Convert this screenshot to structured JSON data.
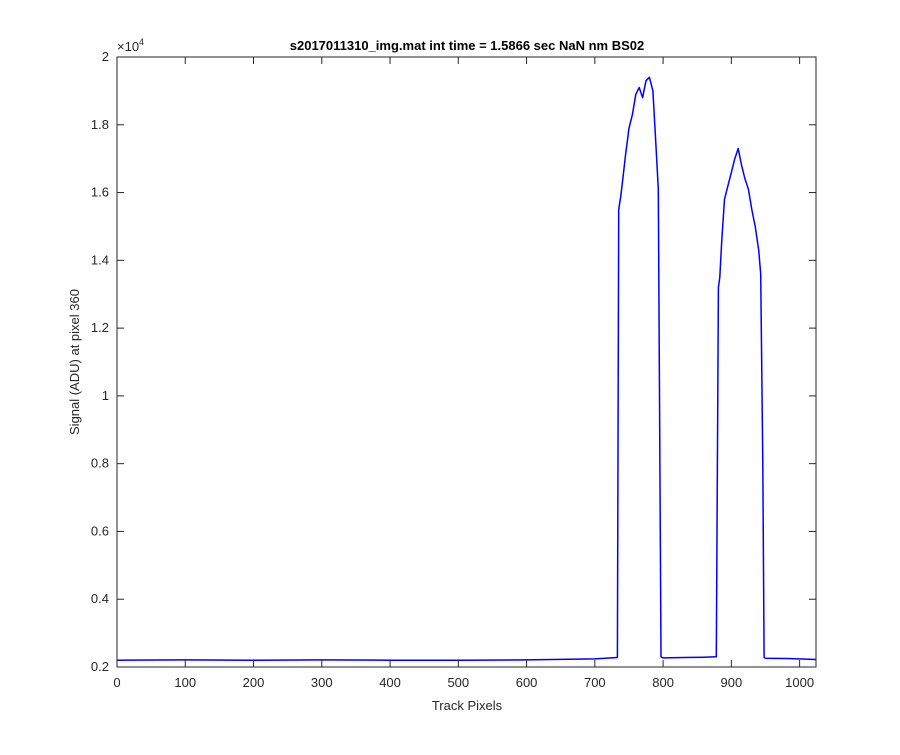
{
  "chart_data": {
    "type": "line",
    "title": "s2017011310_img.mat int time = 1.5866 sec  NaN nm BS02",
    "xlabel": "Track Pixels",
    "ylabel": "Signal (ADU) at pixel 360",
    "y_exponent_label": "×10",
    "y_exponent_power": "4",
    "xlim": [
      0,
      1024
    ],
    "ylim": [
      2000,
      20000
    ],
    "x_ticks": [
      0,
      100,
      200,
      300,
      400,
      500,
      600,
      700,
      800,
      900,
      1000
    ],
    "x_tick_labels": [
      "0",
      "100",
      "200",
      "300",
      "400",
      "500",
      "600",
      "700",
      "800",
      "900",
      "1000"
    ],
    "y_ticks": [
      2000,
      4000,
      6000,
      8000,
      10000,
      12000,
      14000,
      16000,
      18000,
      20000
    ],
    "y_tick_labels": [
      "0.2",
      "0.4",
      "0.6",
      "0.8",
      "1",
      "1.2",
      "1.4",
      "1.6",
      "1.8",
      "2"
    ],
    "grid": false,
    "line_color": "#0000ff",
    "series": [
      {
        "x": [
          0,
          100,
          200,
          300,
          400,
          500,
          600,
          700,
          733,
          735,
          738,
          741,
          745,
          750,
          755,
          760,
          765,
          770,
          775,
          780,
          785,
          790,
          793,
          795,
          797,
          800,
          830,
          860,
          878,
          881,
          883,
          886,
          890,
          895,
          900,
          905,
          910,
          915,
          920,
          925,
          930,
          935,
          940,
          943,
          946,
          948,
          950,
          980,
          1000,
          1024
        ],
        "y": [
          2200,
          2210,
          2200,
          2210,
          2200,
          2200,
          2210,
          2240,
          2280,
          15500,
          15900,
          16400,
          17100,
          17900,
          18300,
          18900,
          19100,
          18800,
          19300,
          19400,
          19000,
          17200,
          16100,
          9000,
          2300,
          2270,
          2280,
          2290,
          2300,
          13200,
          13500,
          14600,
          15800,
          16200,
          16600,
          17000,
          17300,
          16800,
          16400,
          16100,
          15500,
          15000,
          14300,
          13600,
          8000,
          2280,
          2260,
          2250,
          2240,
          2220
        ]
      }
    ]
  }
}
